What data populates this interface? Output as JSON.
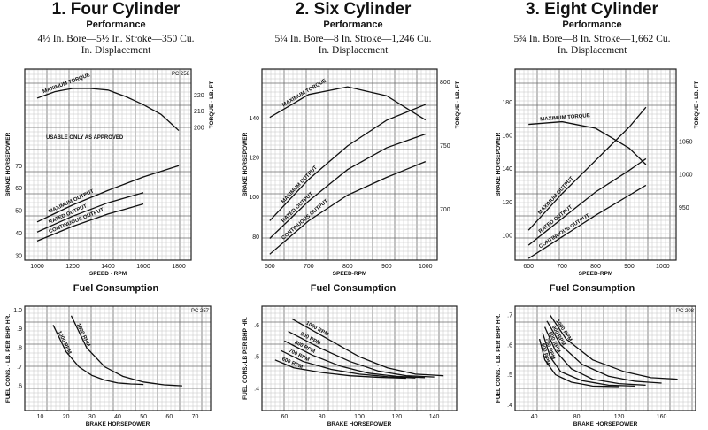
{
  "panels": [
    {
      "title": "1. Four Cylinder",
      "perf_label": "Performance",
      "spec_line1": "4½ In. Bore—5½ In. Stroke—350 Cu.",
      "spec_line2": "In. Displacement",
      "fuel_label": "Fuel Consumption"
    },
    {
      "title": "2. Six Cylinder",
      "perf_label": "Performance",
      "spec_line1": "5¼ In. Bore—8 In. Stroke—1,246 Cu.",
      "spec_line2": "In. Displacement",
      "fuel_label": "Fuel Consumption"
    },
    {
      "title": "3. Eight Cylinder",
      "perf_label": "Performance",
      "spec_line1": "5¾ In. Bore—8 In. Stroke—1,662 Cu.",
      "spec_line2": "In. Displacement",
      "fuel_label": "Fuel Consumption"
    }
  ],
  "chart_data": [
    {
      "id": "perf4",
      "type": "line",
      "chart_code": "PC 258",
      "xlabel": "SPEED - RPM",
      "ylabel": "BRAKE HORSEPOWER",
      "y2label": "TORQUE - LB. FT.",
      "xlim": [
        930,
        1870
      ],
      "ylim": [
        28,
        113
      ],
      "y2lim": [
        118,
        236
      ],
      "xticks": [
        1000,
        1200,
        1400,
        1600,
        1800
      ],
      "yticks": [
        30,
        40,
        50,
        60,
        70
      ],
      "y2ticks": [
        200,
        210,
        220
      ],
      "annotations": [
        {
          "text": "USABLE ONLY AS APPROVED",
          "x": 1050,
          "y": 82
        }
      ],
      "series": [
        {
          "name": "MAXIMUM TORQUE",
          "axis": "y2",
          "x": [
            1000,
            1100,
            1200,
            1300,
            1400,
            1500,
            1600,
            1700,
            1800
          ],
          "y": [
            218,
            222,
            224,
            224,
            223,
            219,
            214,
            208,
            198
          ]
        },
        {
          "name": "MAXIMUM OUTPUT",
          "x": [
            1000,
            1200,
            1400,
            1600,
            1800
          ],
          "y": [
            45,
            52.5,
            59,
            65,
            70
          ]
        },
        {
          "name": "RATED OUTPUT",
          "x": [
            1000,
            1200,
            1400,
            1600
          ],
          "y": [
            40.5,
            47.5,
            53.5,
            58
          ]
        },
        {
          "name": "CONTINUOUS OUTPUT",
          "x": [
            1000,
            1200,
            1400,
            1600
          ],
          "y": [
            36.5,
            43,
            48.5,
            53
          ]
        }
      ]
    },
    {
      "id": "fuel4",
      "type": "line",
      "chart_code": "PC 257",
      "xlabel": "BRAKE HORSEPOWER",
      "ylabel": "FUEL CONS. - LB. PER BHP. HR.",
      "xlim": [
        4,
        76
      ],
      "ylim": [
        0.47,
        1.02
      ],
      "xticks": [
        10,
        20,
        30,
        40,
        50,
        60,
        70
      ],
      "yticks": [
        0.6,
        0.7,
        0.8,
        0.9,
        1.0
      ],
      "ytick_labels": [
        ".6",
        ".7",
        ".8",
        ".9",
        "1.0"
      ],
      "series": [
        {
          "name": "1000 RPM",
          "x": [
            15,
            20,
            25,
            30,
            35,
            40,
            45,
            50
          ],
          "y": [
            0.92,
            0.78,
            0.7,
            0.655,
            0.63,
            0.615,
            0.61,
            0.607
          ]
        },
        {
          "name": "1800 RPM",
          "x": [
            22,
            28,
            35,
            42,
            50,
            58,
            65
          ],
          "y": [
            0.97,
            0.8,
            0.7,
            0.65,
            0.62,
            0.605,
            0.6
          ]
        }
      ]
    },
    {
      "id": "perf6",
      "type": "line",
      "xlabel": "SPEED-RPM",
      "ylabel": "BRAKE HORSEPOWER",
      "y2label": "TORQUE - LB. FT.",
      "xlim": [
        580,
        1030
      ],
      "ylim": [
        68,
        165
      ],
      "y2lim": [
        660,
        810
      ],
      "xticks": [
        600,
        700,
        800,
        900,
        1000
      ],
      "yticks": [
        80,
        100,
        120,
        140
      ],
      "y2ticks": [
        700,
        750,
        800
      ],
      "series": [
        {
          "name": "MAXIMUM TORQUE",
          "axis": "y2",
          "x": [
            600,
            700,
            800,
            900,
            1000
          ],
          "y": [
            772,
            790,
            796,
            789,
            770
          ]
        },
        {
          "name": "MAXIMUM OUTPUT",
          "x": [
            600,
            700,
            800,
            900,
            1000
          ],
          "y": [
            88,
            109,
            126,
            139,
            147
          ]
        },
        {
          "name": "RATED OUTPUT",
          "x": [
            600,
            700,
            800,
            900,
            1000
          ],
          "y": [
            79,
            98,
            114,
            125,
            132
          ]
        },
        {
          "name": "CONTINUOUS OUTPUT",
          "x": [
            600,
            700,
            800,
            900,
            1000
          ],
          "y": [
            71,
            88,
            101,
            110,
            118
          ]
        }
      ]
    },
    {
      "id": "fuel6",
      "type": "line",
      "xlabel": "BRAKE HORSEPOWER",
      "ylabel": "FUEL CONS.-LB PER BHP HR.",
      "xlim": [
        48,
        152
      ],
      "ylim": [
        0.33,
        0.66
      ],
      "xticks": [
        60,
        80,
        100,
        120,
        140
      ],
      "yticks": [
        0.4,
        0.5,
        0.6
      ],
      "ytick_labels": [
        ".4",
        ".5",
        ".6"
      ],
      "series": [
        {
          "name": "600 RPM",
          "x": [
            55,
            65,
            80,
            95,
            110,
            125
          ],
          "y": [
            0.49,
            0.465,
            0.45,
            0.44,
            0.435,
            0.432
          ]
        },
        {
          "name": "700 RPM",
          "x": [
            58,
            70,
            85,
            100,
            115,
            130
          ],
          "y": [
            0.52,
            0.485,
            0.46,
            0.445,
            0.437,
            0.433
          ]
        },
        {
          "name": "800 RPM",
          "x": [
            60,
            75,
            90,
            105,
            120,
            135
          ],
          "y": [
            0.55,
            0.505,
            0.47,
            0.448,
            0.438,
            0.434
          ]
        },
        {
          "name": "900 RPM",
          "x": [
            62,
            80,
            95,
            110,
            125,
            140
          ],
          "y": [
            0.58,
            0.525,
            0.485,
            0.455,
            0.44,
            0.436
          ]
        },
        {
          "name": "1000 RPM",
          "x": [
            64,
            85,
            100,
            115,
            130,
            145
          ],
          "y": [
            0.62,
            0.55,
            0.5,
            0.465,
            0.445,
            0.44
          ]
        }
      ]
    },
    {
      "id": "perf8",
      "type": "line",
      "xlabel": "SPEED-RPM",
      "ylabel": "BRAKE HORSEPOWER",
      "y2label": "TORQUE - LB. FT.",
      "xlim": [
        560,
        1040
      ],
      "ylim": [
        85,
        200
      ],
      "y2lim": [
        870,
        1160
      ],
      "xticks": [
        600,
        700,
        800,
        900,
        1000
      ],
      "yticks": [
        100,
        120,
        140,
        160,
        180
      ],
      "y2ticks": [
        950,
        1000,
        1050
      ],
      "series": [
        {
          "name": "MAXIMUM TORQUE",
          "axis": "y2",
          "x": [
            600,
            700,
            800,
            900,
            950
          ],
          "y": [
            1076,
            1080,
            1070,
            1040,
            1015
          ]
        },
        {
          "name": "MAXIMUM OUTPUT",
          "x": [
            600,
            700,
            800,
            900,
            950
          ],
          "y": [
            103,
            125,
            145,
            165,
            177
          ]
        },
        {
          "name": "RATED OUTPUT",
          "x": [
            600,
            700,
            800,
            900,
            950
          ],
          "y": [
            94,
            110,
            126,
            139,
            146
          ]
        },
        {
          "name": "CONTINUOUS OUTPUT",
          "x": [
            600,
            700,
            800,
            900,
            950
          ],
          "y": [
            86,
            99,
            112,
            124,
            130
          ]
        }
      ]
    },
    {
      "id": "fuel8",
      "type": "line",
      "chart_code": "PC 208",
      "xlabel": "BRAKE HORSEPOWER",
      "ylabel": "FUEL CONS. - LB. PER BHP. HR.",
      "xlim": [
        22,
        192
      ],
      "ylim": [
        0.38,
        0.73
      ],
      "xticks": [
        40,
        80,
        120,
        160
      ],
      "yticks": [
        0.4,
        0.5,
        0.6,
        0.7
      ],
      "ytick_labels": [
        ".4",
        ".5",
        ".6",
        ".7"
      ],
      "series": [
        {
          "name": "600 RPM",
          "x": [
            45,
            50,
            60,
            75,
            95,
            120
          ],
          "y": [
            0.62,
            0.55,
            0.5,
            0.475,
            0.462,
            0.46
          ]
        },
        {
          "name": "700 RPM",
          "x": [
            48,
            55,
            65,
            85,
            110,
            135
          ],
          "y": [
            0.64,
            0.56,
            0.51,
            0.48,
            0.465,
            0.462
          ]
        },
        {
          "name": "800 RPM",
          "x": [
            50,
            60,
            75,
            95,
            120,
            145
          ],
          "y": [
            0.66,
            0.58,
            0.52,
            0.485,
            0.47,
            0.465
          ]
        },
        {
          "name": "900 RPM",
          "x": [
            52,
            65,
            85,
            110,
            135,
            160
          ],
          "y": [
            0.68,
            0.6,
            0.535,
            0.495,
            0.478,
            0.472
          ]
        },
        {
          "name": "1000 RPM",
          "x": [
            55,
            70,
            95,
            125,
            150,
            175
          ],
          "y": [
            0.7,
            0.62,
            0.55,
            0.51,
            0.49,
            0.485
          ]
        }
      ]
    }
  ]
}
